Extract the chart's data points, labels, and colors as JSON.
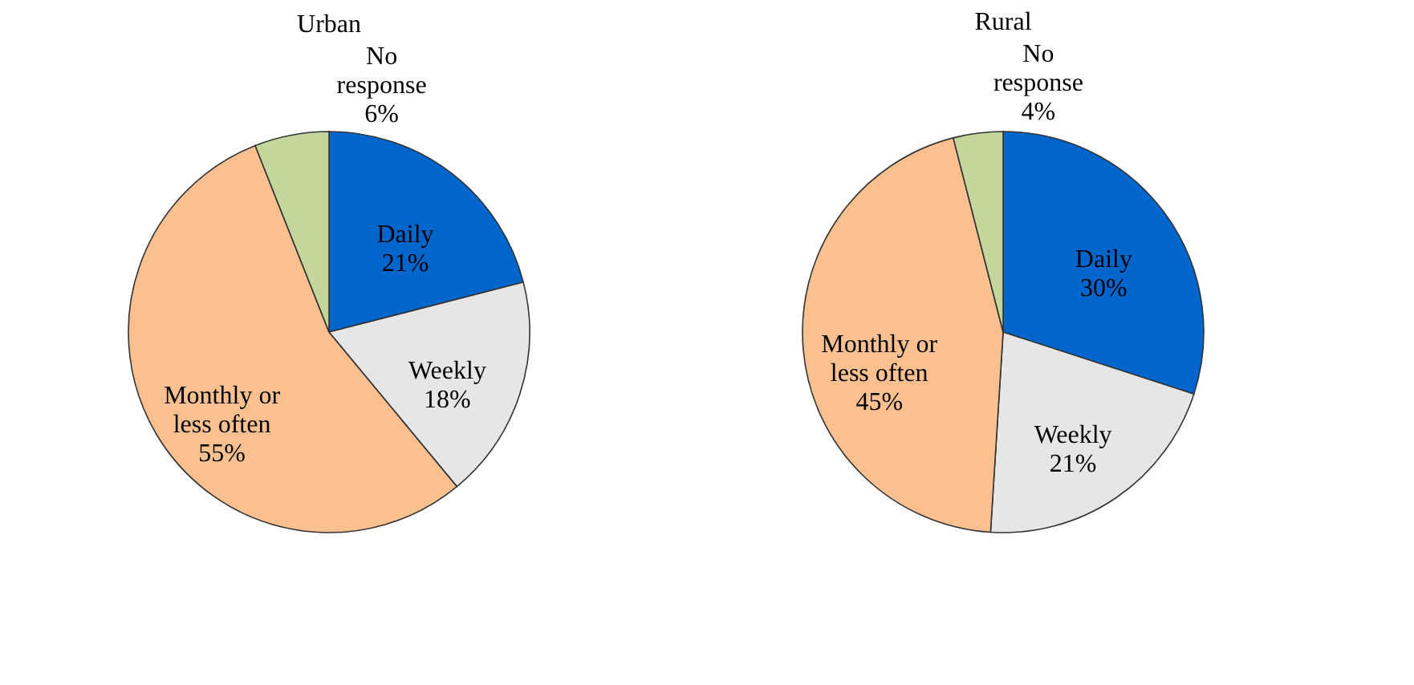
{
  "chart_data": [
    {
      "type": "pie",
      "title": "Urban",
      "categories": [
        "Daily",
        "Weekly",
        "Monthly or less often",
        "No response"
      ],
      "values": [
        21,
        18,
        55,
        6
      ],
      "value_labels": [
        "21%",
        "18%",
        "55%",
        "6%"
      ],
      "colors": [
        "#0066cc",
        "#e6e6e6",
        "#fac090",
        "#c3d69b"
      ],
      "legend": false
    },
    {
      "type": "pie",
      "title": "Rural",
      "categories": [
        "Daily",
        "Weekly",
        "Monthly or less often",
        "No response"
      ],
      "values": [
        30,
        21,
        45,
        4
      ],
      "value_labels": [
        "30%",
        "21%",
        "45%",
        "4%"
      ],
      "colors": [
        "#0066cc",
        "#e6e6e6",
        "#fac090",
        "#c3d69b"
      ],
      "legend": false
    }
  ]
}
